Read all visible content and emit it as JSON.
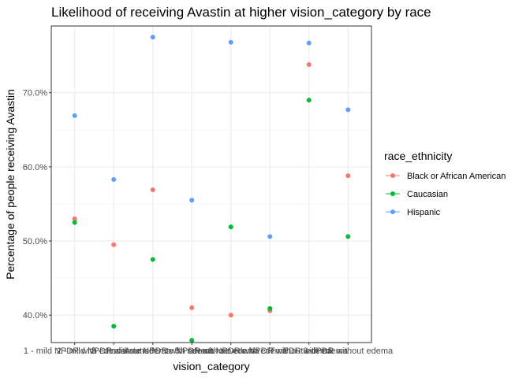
{
  "chart_data": {
    "type": "scatter",
    "title": "Likelihood of receiving Avastin at higher vision_category by race",
    "xlabel": "vision_category",
    "ylabel": "Percentage of people receiving Avastin",
    "categories": [
      "1 - mild NPDR with edema",
      "2 - mild NPDR without edema",
      "3 - moderate NPDR with edema",
      "4 - moderate NPDR without edema",
      "5 - severe NPDR with edema",
      "6 - severe NPDR without edema",
      "7 - PDR with edema",
      "8 - PDR without edema"
    ],
    "y_ticks": [
      0.4,
      0.5,
      0.6,
      0.7
    ],
    "y_tick_labels": [
      "40.0%",
      "50.0%",
      "60.0%",
      "70.0%"
    ],
    "ylim": [
      0.363,
      0.79
    ],
    "grid": true,
    "legend": {
      "title": "race_ethnicity",
      "position": "right"
    },
    "series": [
      {
        "name": "Black or African American",
        "color": "#F8766D",
        "values": [
          0.53,
          0.495,
          0.569,
          0.41,
          0.4,
          0.406,
          0.738,
          0.588
        ]
      },
      {
        "name": "Caucasian",
        "color": "#00BA38",
        "values": [
          0.525,
          0.385,
          0.475,
          0.366,
          0.519,
          0.409,
          0.69,
          0.506
        ]
      },
      {
        "name": "Hispanic",
        "color": "#619CFF",
        "values": [
          0.669,
          0.583,
          0.775,
          0.555,
          0.768,
          0.506,
          0.767,
          0.677
        ]
      }
    ]
  }
}
